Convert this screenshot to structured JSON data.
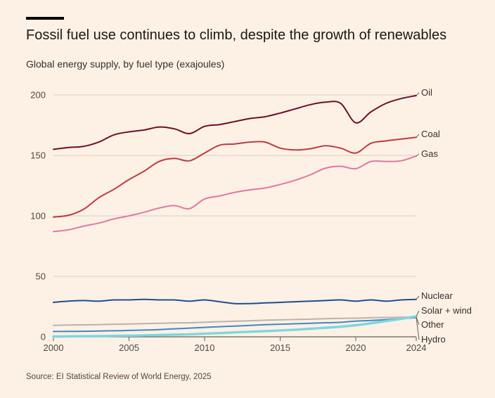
{
  "header": {
    "title": "Fossil fuel use continues to climb, despite the growth of renewables",
    "subtitle": "Global energy supply, by fuel type (exajoules)"
  },
  "footer": {
    "source": "Source: EI Statistical Review of World Energy, 2025"
  },
  "chart_data": {
    "type": "line",
    "title": "Fossil fuel use continues to climb, despite the growth of renewables",
    "subtitle": "Global energy supply, by fuel type (exajoules)",
    "xlabel": "",
    "ylabel": "",
    "xlim": [
      2000,
      2024
    ],
    "ylim": [
      0,
      200
    ],
    "x_ticks": [
      2000,
      2005,
      2010,
      2015,
      2020,
      2024
    ],
    "y_ticks": [
      0,
      50,
      100,
      150,
      200
    ],
    "grid": "horizontal",
    "legend": "direct labels at right end of lines",
    "x": [
      2000,
      2001,
      2002,
      2003,
      2004,
      2005,
      2006,
      2007,
      2008,
      2009,
      2010,
      2011,
      2012,
      2013,
      2014,
      2015,
      2016,
      2017,
      2018,
      2019,
      2020,
      2021,
      2022,
      2023,
      2024
    ],
    "series": [
      {
        "name": "Oil",
        "color": "#6e0d2c",
        "values": [
          155,
          156.5,
          157.5,
          161,
          167,
          169.5,
          171,
          173.5,
          172,
          168,
          174,
          175.5,
          178,
          180.5,
          182,
          185,
          188.5,
          192,
          194,
          193,
          177,
          186,
          193,
          197,
          199.5
        ]
      },
      {
        "name": "Coal",
        "color": "#bf3a45",
        "values": [
          99,
          100.5,
          105.5,
          115,
          122,
          130,
          137,
          145,
          147.5,
          145.5,
          152,
          158.5,
          159.5,
          161,
          161,
          156,
          154.5,
          155.5,
          158,
          156,
          152,
          160,
          162,
          163.5,
          165
        ]
      },
      {
        "name": "Gas",
        "color": "#e277a0",
        "values": [
          87,
          88.5,
          91.5,
          94,
          97.5,
          100,
          103,
          106.5,
          108.5,
          106,
          114,
          116.5,
          119.5,
          121.5,
          123,
          126,
          129.5,
          134,
          139.5,
          141,
          139,
          145,
          145,
          145.5,
          149.5
        ]
      },
      {
        "name": "Nuclear",
        "color": "#1e4f8c",
        "values": [
          28.5,
          29.5,
          30,
          29.5,
          30.5,
          30.5,
          31,
          30.5,
          30.5,
          29.5,
          30.5,
          29,
          27.5,
          27.5,
          28,
          28.5,
          29,
          29.5,
          30,
          30.5,
          29.5,
          30.5,
          29.5,
          30.5,
          31
        ]
      },
      {
        "name": "Solar + wind",
        "color": "#7ed6de",
        "values": [
          0.3,
          0.4,
          0.5,
          0.6,
          0.8,
          1,
          1.2,
          1.5,
          1.8,
          2.1,
          2.6,
          3.1,
          3.7,
          4.2,
          4.7,
          5.3,
          5.9,
          6.7,
          7.5,
          8.4,
          9.6,
          11.2,
          13,
          14.8,
          17
        ]
      },
      {
        "name": "Other",
        "color": "#b8b4ad",
        "values": [
          9.5,
          9.7,
          9.9,
          10.1,
          10.4,
          10.6,
          10.9,
          11.2,
          11.5,
          11.6,
          12.1,
          12.5,
          12.9,
          13.3,
          13.7,
          14,
          14.3,
          14.6,
          15,
          15.3,
          15.4,
          15.8,
          16,
          16.2,
          16.4
        ]
      },
      {
        "name": "Hydro",
        "color": "#3f88c5",
        "values": [
          4.4,
          4.5,
          4.6,
          4.8,
          5,
          5.3,
          5.6,
          6,
          6.6,
          7.2,
          7.8,
          8.4,
          8.9,
          9.5,
          10,
          10.4,
          10.8,
          11.2,
          11.6,
          12,
          13,
          13.5,
          14.2,
          15,
          15.8
        ]
      }
    ]
  }
}
